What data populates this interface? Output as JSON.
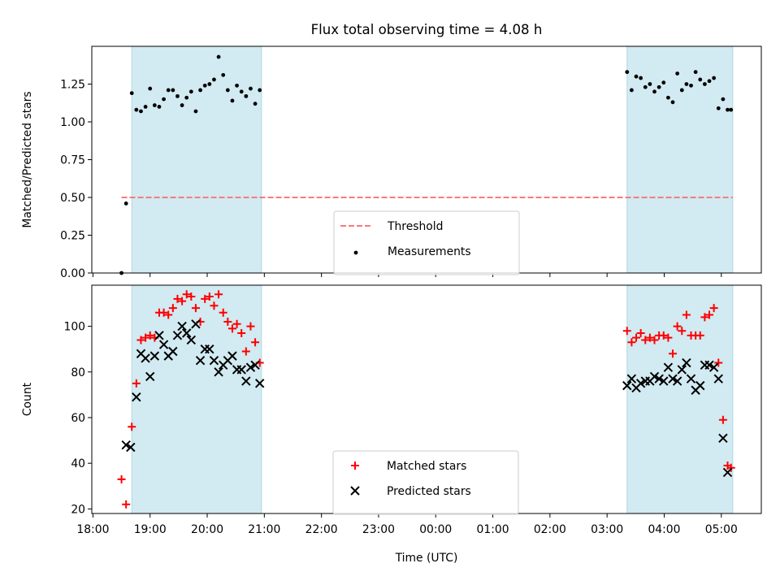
{
  "chart_data": {
    "title": "Flux total observing time = 4.08 h",
    "shared_x": {
      "label": "Time (UTC)",
      "unit": "hours since 18:00",
      "ticks": [
        {
          "v": 0,
          "label": "18:00"
        },
        {
          "v": 1,
          "label": "19:00"
        },
        {
          "v": 2,
          "label": "20:00"
        },
        {
          "v": 3,
          "label": "21:00"
        },
        {
          "v": 4,
          "label": "22:00"
        },
        {
          "v": 5,
          "label": "23:00"
        },
        {
          "v": 6,
          "label": "00:00"
        },
        {
          "v": 7,
          "label": "01:00"
        },
        {
          "v": 8,
          "label": "02:00"
        },
        {
          "v": 9,
          "label": "03:00"
        },
        {
          "v": 10,
          "label": "04:00"
        },
        {
          "v": 11,
          "label": "05:00"
        }
      ],
      "xlim": [
        -0.02,
        11.7
      ]
    },
    "shaded_intervals": [
      {
        "from": 18.68,
        "to": 20.95,
        "color": "#add8e6"
      },
      {
        "from": 27.35,
        "to": 29.2,
        "color": "#add8e6"
      }
    ],
    "panels": [
      {
        "type": "scatter",
        "ylabel": "Matched/Predicted stars",
        "ylim": [
          0,
          1.5
        ],
        "yticks": [
          {
            "v": 0,
            "label": "0.00"
          },
          {
            "v": 0.25,
            "label": "0.25"
          },
          {
            "v": 0.5,
            "label": "0.50"
          },
          {
            "v": 0.75,
            "label": "0.75"
          },
          {
            "v": 1.0,
            "label": "1.00"
          },
          {
            "v": 1.25,
            "label": "1.25"
          }
        ],
        "show_xticklabels": false,
        "threshold": {
          "name": "Threshold",
          "y": 0.5,
          "x_from": 18.5,
          "x_to": 29.2,
          "color": "#f87b7b"
        },
        "series": [
          {
            "name": "Measurements",
            "marker": "dot",
            "color": "#000000",
            "x": [
              18.5,
              18.58,
              18.68,
              18.76,
              18.84,
              18.92,
              19.0,
              19.08,
              19.16,
              19.24,
              19.32,
              19.4,
              19.48,
              19.56,
              19.64,
              19.72,
              19.8,
              19.88,
              19.96,
              20.04,
              20.12,
              20.2,
              20.28,
              20.36,
              20.44,
              20.52,
              20.6,
              20.68,
              20.76,
              20.84,
              20.92,
              27.35,
              27.43,
              27.51,
              27.59,
              27.67,
              27.75,
              27.83,
              27.91,
              27.99,
              28.07,
              28.15,
              28.23,
              28.31,
              28.39,
              28.47,
              28.55,
              28.63,
              28.71,
              28.79,
              28.87,
              28.95,
              29.03,
              29.11,
              29.17
            ],
            "y": [
              0.0,
              0.46,
              1.19,
              1.08,
              1.07,
              1.1,
              1.22,
              1.11,
              1.1,
              1.15,
              1.21,
              1.21,
              1.17,
              1.11,
              1.16,
              1.2,
              1.07,
              1.21,
              1.24,
              1.25,
              1.28,
              1.43,
              1.31,
              1.21,
              1.14,
              1.24,
              1.2,
              1.17,
              1.22,
              1.12,
              1.21,
              1.33,
              1.21,
              1.3,
              1.29,
              1.23,
              1.25,
              1.2,
              1.23,
              1.26,
              1.16,
              1.13,
              1.32,
              1.21,
              1.25,
              1.24,
              1.33,
              1.28,
              1.25,
              1.27,
              1.29,
              1.09,
              1.15,
              1.08,
              1.08
            ]
          }
        ]
      },
      {
        "type": "scatter",
        "ylabel": "Count",
        "ylim": [
          18,
          118
        ],
        "yticks": [
          {
            "v": 20,
            "label": "20"
          },
          {
            "v": 40,
            "label": "40"
          },
          {
            "v": 60,
            "label": "60"
          },
          {
            "v": 80,
            "label": "80"
          },
          {
            "v": 100,
            "label": "100"
          }
        ],
        "show_xticklabels": true,
        "series": [
          {
            "name": "Matched stars",
            "marker": "plus",
            "color": "#ff0000",
            "x": [
              18.5,
              18.58,
              18.68,
              18.76,
              18.84,
              18.92,
              19.0,
              19.08,
              19.16,
              19.24,
              19.32,
              19.4,
              19.48,
              19.56,
              19.64,
              19.72,
              19.8,
              19.88,
              19.96,
              20.04,
              20.12,
              20.2,
              20.28,
              20.36,
              20.44,
              20.52,
              20.6,
              20.68,
              20.76,
              20.84,
              20.92,
              27.35,
              27.43,
              27.51,
              27.59,
              27.67,
              27.75,
              27.83,
              27.91,
              27.99,
              28.07,
              28.15,
              28.23,
              28.31,
              28.39,
              28.47,
              28.55,
              28.63,
              28.71,
              28.79,
              28.87,
              28.95,
              29.03,
              29.11,
              29.17
            ],
            "y": [
              33,
              22,
              56,
              75,
              94,
              95,
              96,
              95,
              106,
              106,
              105,
              108,
              112,
              111,
              114,
              113,
              108,
              102,
              112,
              113,
              109,
              114,
              106,
              102,
              99,
              101,
              97,
              89,
              100,
              93,
              84,
              98,
              93,
              95,
              97,
              94,
              95,
              94,
              96,
              96,
              95,
              88,
              100,
              98,
              105,
              96,
              96,
              96,
              104,
              105,
              108,
              84,
              59,
              39,
              38
            ]
          },
          {
            "name": "Predicted stars",
            "marker": "x",
            "color": "#000000",
            "x": [
              18.58,
              18.66,
              18.76,
              18.84,
              18.92,
              19.0,
              19.08,
              19.16,
              19.24,
              19.32,
              19.4,
              19.48,
              19.56,
              19.64,
              19.72,
              19.8,
              19.88,
              19.96,
              20.04,
              20.12,
              20.2,
              20.28,
              20.36,
              20.44,
              20.52,
              20.6,
              20.68,
              20.76,
              20.84,
              20.92,
              27.35,
              27.43,
              27.51,
              27.59,
              27.67,
              27.75,
              27.83,
              27.91,
              27.99,
              28.07,
              28.15,
              28.23,
              28.31,
              28.39,
              28.47,
              28.55,
              28.63,
              28.71,
              28.79,
              28.87,
              28.95,
              29.03,
              29.11
            ],
            "y": [
              48,
              47,
              69,
              88,
              86,
              78,
              87,
              96,
              92,
              87,
              89,
              96,
              100,
              97,
              94,
              101,
              85,
              90,
              90,
              85,
              80,
              83,
              85,
              87,
              81,
              81,
              76,
              82,
              83,
              75,
              74,
              77,
              73,
              75,
              76,
              76,
              78,
              77,
              76,
              82,
              77,
              76,
              81,
              84,
              77,
              72,
              74,
              83,
              83,
              82,
              77,
              51,
              36
            ]
          }
        ]
      }
    ]
  }
}
